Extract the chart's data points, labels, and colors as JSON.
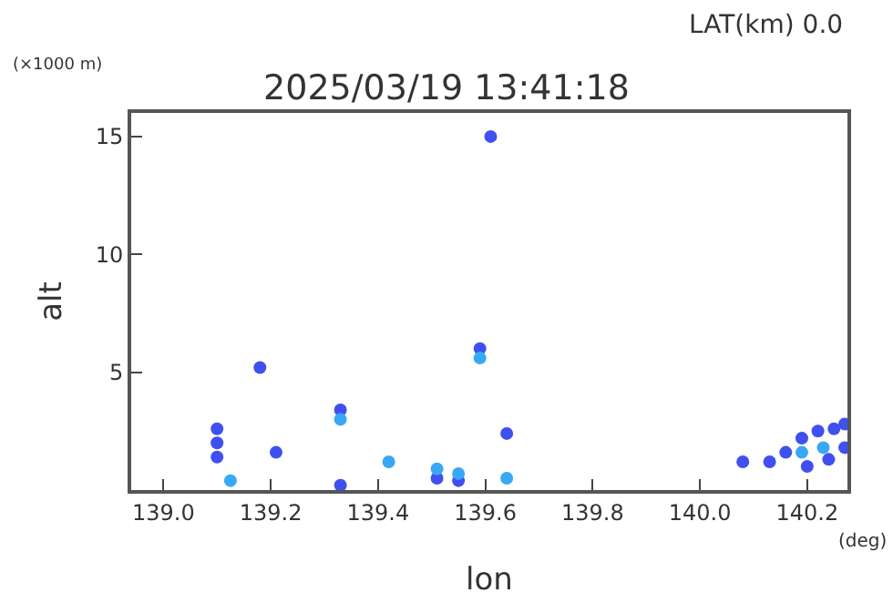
{
  "chart_data": {
    "type": "scatter",
    "title": "2025/03/19 13:41:18",
    "xlabel": "lon",
    "ylabel": "alt",
    "annotations": [
      "LAT(km) 0.0",
      "(×1000 m)",
      "(deg)"
    ],
    "xlim": [
      138.94,
      140.275
    ],
    "xticks": [
      {
        "value": 139.0,
        "label": "139.0"
      },
      {
        "value": 139.2,
        "label": "139.2"
      },
      {
        "value": 139.4,
        "label": "139.4"
      },
      {
        "value": 139.6,
        "label": "139.6"
      },
      {
        "value": 139.8,
        "label": "139.8"
      },
      {
        "value": 140.0,
        "label": "140.0"
      },
      {
        "value": 140.2,
        "label": "140.2"
      }
    ],
    "ylim": [
      0,
      16
    ],
    "yticks": [
      5,
      10,
      15
    ],
    "grid": false,
    "marker": "circle",
    "series": [
      {
        "color": "#4050f0",
        "x": [
          139.1,
          139.1,
          139.1,
          139.18,
          139.21,
          139.33,
          139.33,
          139.51,
          139.55,
          139.59,
          139.61,
          139.64,
          140.08,
          140.13,
          140.16,
          140.19,
          140.22,
          140.25,
          140.27,
          140.2,
          140.24,
          140.27
        ],
        "values": [
          1.4,
          2.0,
          2.6,
          5.2,
          1.6,
          3.4,
          0.2,
          0.5,
          0.4,
          6.0,
          15.0,
          2.4,
          1.2,
          1.2,
          1.6,
          2.2,
          2.5,
          2.6,
          2.8,
          1.0,
          1.3,
          1.8
        ]
      },
      {
        "color": "#38a8f5",
        "x": [
          139.125,
          139.33,
          139.42,
          139.51,
          139.55,
          139.59,
          139.64,
          140.19,
          140.23
        ],
        "values": [
          0.4,
          3.0,
          1.2,
          0.9,
          0.7,
          5.6,
          0.5,
          1.6,
          1.8
        ]
      }
    ]
  }
}
